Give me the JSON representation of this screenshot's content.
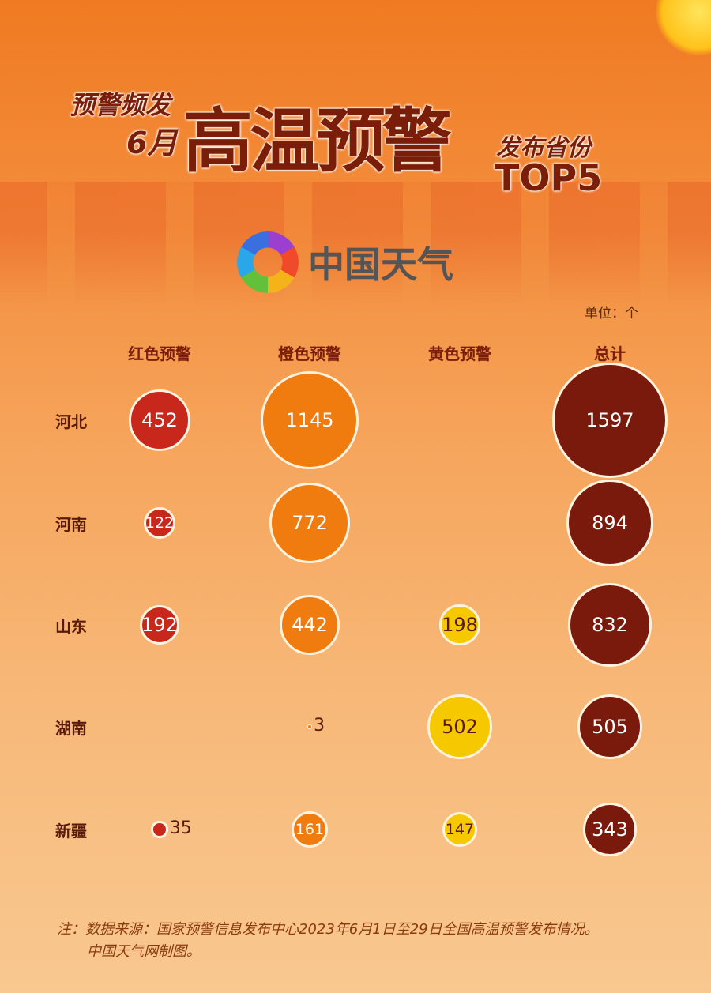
{
  "title": {
    "line1": "预警频发",
    "line2": "6月",
    "main": "高温预警",
    "line3": "发布省份",
    "line4": "TOP5"
  },
  "logo": {
    "text": "中国天气"
  },
  "unit": "单位：个",
  "colors": {
    "red": "#c8281c",
    "orange": "#f07c10",
    "yellow": "#f5c800",
    "total": "#7a1a0c"
  },
  "chart_data": {
    "type": "bubble-table",
    "columns": [
      "红色预警",
      "橙色预警",
      "黄色预警",
      "总计"
    ],
    "rows": [
      "河北",
      "河南",
      "山东",
      "湖南",
      "新疆"
    ],
    "values": [
      [
        452,
        1145,
        null,
        1597
      ],
      [
        122,
        772,
        null,
        894
      ],
      [
        192,
        442,
        198,
        832
      ],
      [
        null,
        3,
        502,
        505
      ],
      [
        35,
        161,
        147,
        343
      ]
    ]
  },
  "note": {
    "line1": "注：数据来源：国家预警信息发布中心2023年6月1日至29日全国高温预警发布情况。",
    "line2": "中国天气网制图。"
  }
}
